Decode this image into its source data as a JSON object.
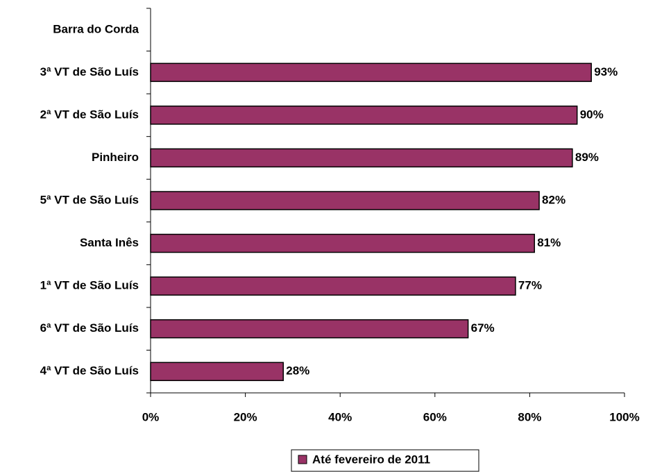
{
  "chart_data": {
    "type": "bar",
    "orientation": "horizontal",
    "categories": [
      "Barra do Corda",
      "3ª VT de São Luís",
      "2ª VT de São Luís",
      "Pinheiro",
      "5ª VT de São Luís",
      "Santa Inês",
      "1ª VT de São Luís",
      "6ª VT de São Luís",
      "4ª VT de São Luís"
    ],
    "series": [
      {
        "name": "Até fevereiro de 2011",
        "color": "#993366",
        "values": [
          null,
          93,
          90,
          89,
          82,
          81,
          77,
          67,
          28
        ],
        "value_labels": [
          null,
          "93%",
          "90%",
          "89%",
          "82%",
          "81%",
          "77%",
          "67%",
          "28%"
        ]
      }
    ],
    "xlim": [
      0,
      100
    ],
    "xticks": [
      {
        "value": 0,
        "label": "0%"
      },
      {
        "value": 20,
        "label": "20%"
      },
      {
        "value": 40,
        "label": "40%"
      },
      {
        "value": 60,
        "label": "60%"
      },
      {
        "value": 80,
        "label": "80%"
      },
      {
        "value": 100,
        "label": "100%"
      }
    ],
    "legend": "bottom"
  }
}
